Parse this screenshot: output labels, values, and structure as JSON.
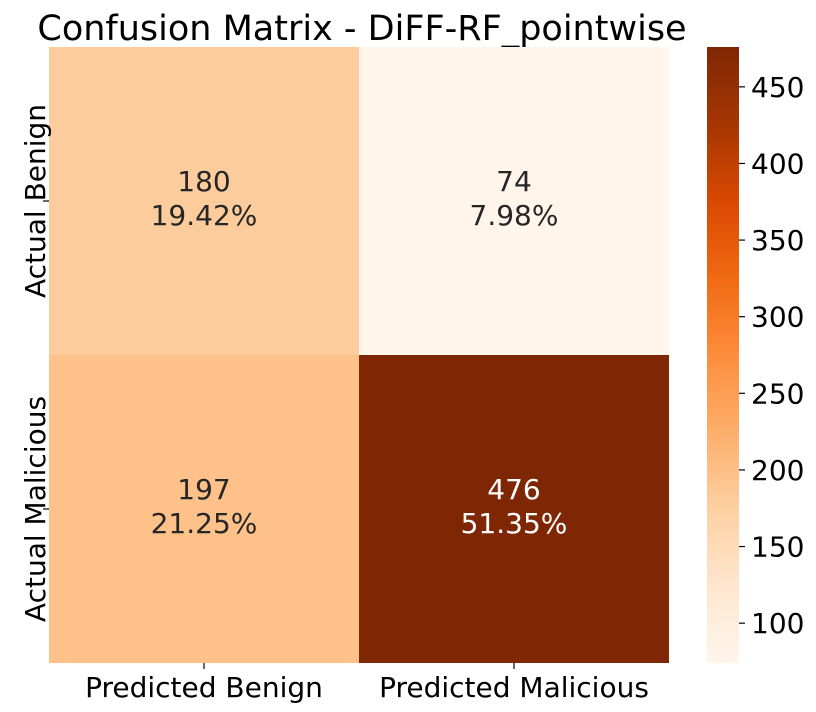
{
  "chart_data": {
    "type": "heatmap",
    "title": "Confusion Matrix - DiFF-RF_pointwise",
    "row_labels": [
      "Actual Benign",
      "Actual Malicious"
    ],
    "col_labels": [
      "Predicted Benign",
      "Predicted Malicious"
    ],
    "cells": [
      [
        {
          "count": 180,
          "percent": "19.42%"
        },
        {
          "count": 74,
          "percent": "7.98%"
        }
      ],
      [
        {
          "count": 197,
          "percent": "21.25%"
        },
        {
          "count": 476,
          "percent": "51.35%"
        }
      ]
    ],
    "colorbar": {
      "min": 74,
      "max": 476,
      "ticks": [
        100,
        150,
        200,
        250,
        300,
        350,
        400,
        450
      ],
      "colormap": "Oranges"
    }
  }
}
